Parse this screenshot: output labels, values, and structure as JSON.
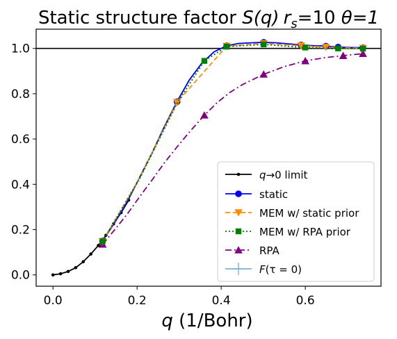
{
  "chart_data": {
    "type": "line",
    "title_main": "Static structure factor ",
    "title_sq": "S(q)",
    "title_rs_var": "r",
    "title_rs_sub": "s",
    "title_rs_val": "=10 ",
    "title_theta": "θ=1",
    "xlabel_var": "q",
    "xlabel_unit": " (1/Bohr)",
    "ylabel": "",
    "xlim": [
      -0.04,
      0.78
    ],
    "ylim": [
      -0.05,
      1.085
    ],
    "xticks": [
      0.0,
      0.2,
      0.4,
      0.6
    ],
    "xtick_labels": [
      "0.0",
      "0.2",
      "0.4",
      "0.6"
    ],
    "yticks": [
      0.0,
      0.2,
      0.4,
      0.6,
      0.8,
      1.0
    ],
    "ytick_labels": [
      "0.0",
      "0.2",
      "0.4",
      "0.6",
      "0.8",
      "1.0"
    ],
    "hline": 1.0,
    "grid": false,
    "legend_position": "lower-right",
    "series": [
      {
        "name": "q→0 limit",
        "color": "#000000",
        "marker": "dot",
        "dash": "solid",
        "x": [
          0.0,
          0.018,
          0.036,
          0.054,
          0.072,
          0.09,
          0.108,
          0.126,
          0.144,
          0.162,
          0.18
        ],
        "y": [
          0.0,
          0.005,
          0.015,
          0.032,
          0.058,
          0.092,
          0.13,
          0.175,
          0.225,
          0.275,
          0.33
        ]
      },
      {
        "name": "static",
        "color": "#0000ff",
        "marker": "circle",
        "dash": "solid",
        "x": [
          0.118,
          0.147,
          0.177,
          0.206,
          0.236,
          0.265,
          0.295,
          0.324,
          0.354,
          0.383,
          0.413,
          0.442,
          0.472,
          0.501,
          0.531,
          0.56,
          0.59,
          0.619,
          0.649,
          0.678,
          0.708,
          0.737
        ],
        "y": [
          0.15,
          0.232,
          0.325,
          0.43,
          0.54,
          0.655,
          0.765,
          0.86,
          0.935,
          0.985,
          1.012,
          1.022,
          1.025,
          1.027,
          1.025,
          1.02,
          1.015,
          1.012,
          1.01,
          1.006,
          1.004,
          1.003
        ]
      },
      {
        "name": "MEM w/ static prior",
        "color": "#ff8c00",
        "marker": "triangle-down",
        "dash": "dashed",
        "x": [
          0.118,
          0.206,
          0.295,
          0.413,
          0.501,
          0.59,
          0.649,
          0.708,
          0.737
        ],
        "y": [
          0.148,
          0.428,
          0.762,
          1.01,
          1.022,
          1.012,
          1.006,
          1.002,
          1.001
        ]
      },
      {
        "name": "MEM w/ RPA prior",
        "color": "#008000",
        "marker": "square",
        "dash": "dotted",
        "x": [
          0.118,
          0.206,
          0.295,
          0.36,
          0.413,
          0.501,
          0.59,
          0.6,
          0.678,
          0.737
        ],
        "y": [
          0.148,
          0.425,
          0.758,
          0.945,
          1.008,
          1.018,
          1.005,
          1.004,
          1.0,
          0.999
        ]
      },
      {
        "name": "RPA",
        "color": "#800080",
        "marker": "triangle-up",
        "dash": "dashdot",
        "x": [
          0.118,
          0.147,
          0.177,
          0.206,
          0.236,
          0.265,
          0.295,
          0.324,
          0.36,
          0.39,
          0.42,
          0.45,
          0.5,
          0.55,
          0.6,
          0.65,
          0.7,
          0.737
        ],
        "y": [
          0.135,
          0.2,
          0.27,
          0.345,
          0.42,
          0.495,
          0.565,
          0.63,
          0.705,
          0.76,
          0.805,
          0.84,
          0.885,
          0.92,
          0.945,
          0.96,
          0.97,
          0.977
        ]
      },
      {
        "name": "F(τ=0)",
        "color": "#7fb0d8",
        "marker": "plus",
        "dash": "solid",
        "x": [
          0.118,
          0.147,
          0.177,
          0.206,
          0.236,
          0.265,
          0.295,
          0.324,
          0.354,
          0.383,
          0.413,
          0.442,
          0.472,
          0.501,
          0.531,
          0.56,
          0.59,
          0.619,
          0.649,
          0.678,
          0.708,
          0.737
        ],
        "y": [
          0.15,
          0.232,
          0.325,
          0.43,
          0.54,
          0.655,
          0.765,
          0.86,
          0.935,
          0.985,
          1.012,
          1.022,
          1.025,
          1.027,
          1.025,
          1.02,
          1.015,
          1.012,
          1.01,
          1.006,
          1.004,
          1.003
        ]
      }
    ],
    "marker_x": {
      "static": [
        0.118,
        0.295,
        0.413,
        0.501,
        0.59,
        0.649,
        0.678,
        0.737
      ],
      "MEM w/ static prior": [
        0.118,
        0.295,
        0.413,
        0.501,
        0.59,
        0.649,
        0.737
      ],
      "MEM w/ RPA prior": [
        0.118,
        0.36,
        0.413,
        0.501,
        0.6,
        0.678,
        0.737
      ],
      "RPA": [
        0.118,
        0.36,
        0.501,
        0.6,
        0.69,
        0.737
      ],
      "q→0 limit": [
        0.0,
        0.018,
        0.036,
        0.054,
        0.072,
        0.09,
        0.108,
        0.126,
        0.144,
        0.162,
        0.18
      ]
    },
    "legend_labels": {
      "limit_var": "q",
      "limit_text": "→0 limit",
      "static": "static",
      "mem_static": "MEM w/ static prior",
      "mem_rpa": "MEM w/ RPA prior",
      "rpa": "RPA",
      "f_var": "F",
      "f_arg": "(τ = 0)"
    }
  }
}
